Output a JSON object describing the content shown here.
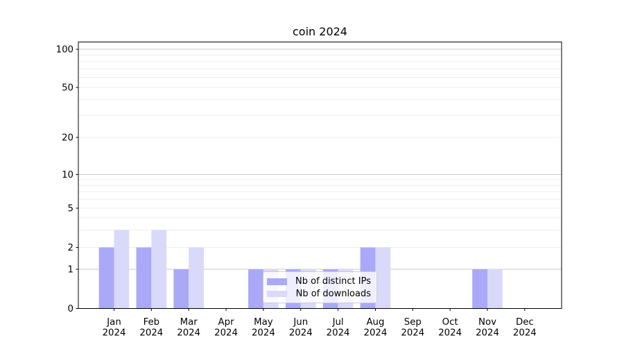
{
  "figure": {
    "title": "coin 2024"
  },
  "chart_data": {
    "type": "bar",
    "title": "coin 2024",
    "categories": [
      "Jan 2024",
      "Feb 2024",
      "Mar 2024",
      "Apr 2024",
      "May 2024",
      "Jun 2024",
      "Jul 2024",
      "Aug 2024",
      "Sep 2024",
      "Oct 2024",
      "Nov 2024",
      "Dec 2024"
    ],
    "series": [
      {
        "name": "Nb of distinct IPs",
        "color": "#a9a9f7",
        "values": [
          2,
          2,
          1,
          0,
          1,
          1,
          1,
          2,
          0,
          0,
          1,
          0
        ]
      },
      {
        "name": "Nb of downloads",
        "color": "#d9d9fa",
        "values": [
          3,
          3,
          2,
          0,
          1,
          1,
          1,
          2,
          0,
          0,
          1,
          0
        ]
      }
    ],
    "xlabel": "",
    "ylabel": "",
    "y_scale": "symlog",
    "y_ticks": [
      0,
      1,
      2,
      5,
      10,
      20,
      50,
      100
    ],
    "y_major_gridlines": [
      1,
      10,
      100
    ],
    "y_minor_gridlines": [
      2,
      3,
      4,
      5,
      6,
      7,
      8,
      9,
      20,
      30,
      40,
      50,
      60,
      70,
      80,
      90
    ],
    "ylim": [
      0,
      110
    ],
    "grid": true,
    "legend": {
      "entries": [
        "Nb of distinct IPs",
        "Nb of downloads"
      ],
      "position": "lower-center-inside"
    }
  },
  "colors": {
    "bar_distinct_ips": "#a9a9f7",
    "bar_downloads": "#d9d9fa",
    "grid_major": "#c9c9c9",
    "grid_minor": "#ededed",
    "axis": "#000000",
    "text": "#000000",
    "legend_border": "#cccccc"
  }
}
